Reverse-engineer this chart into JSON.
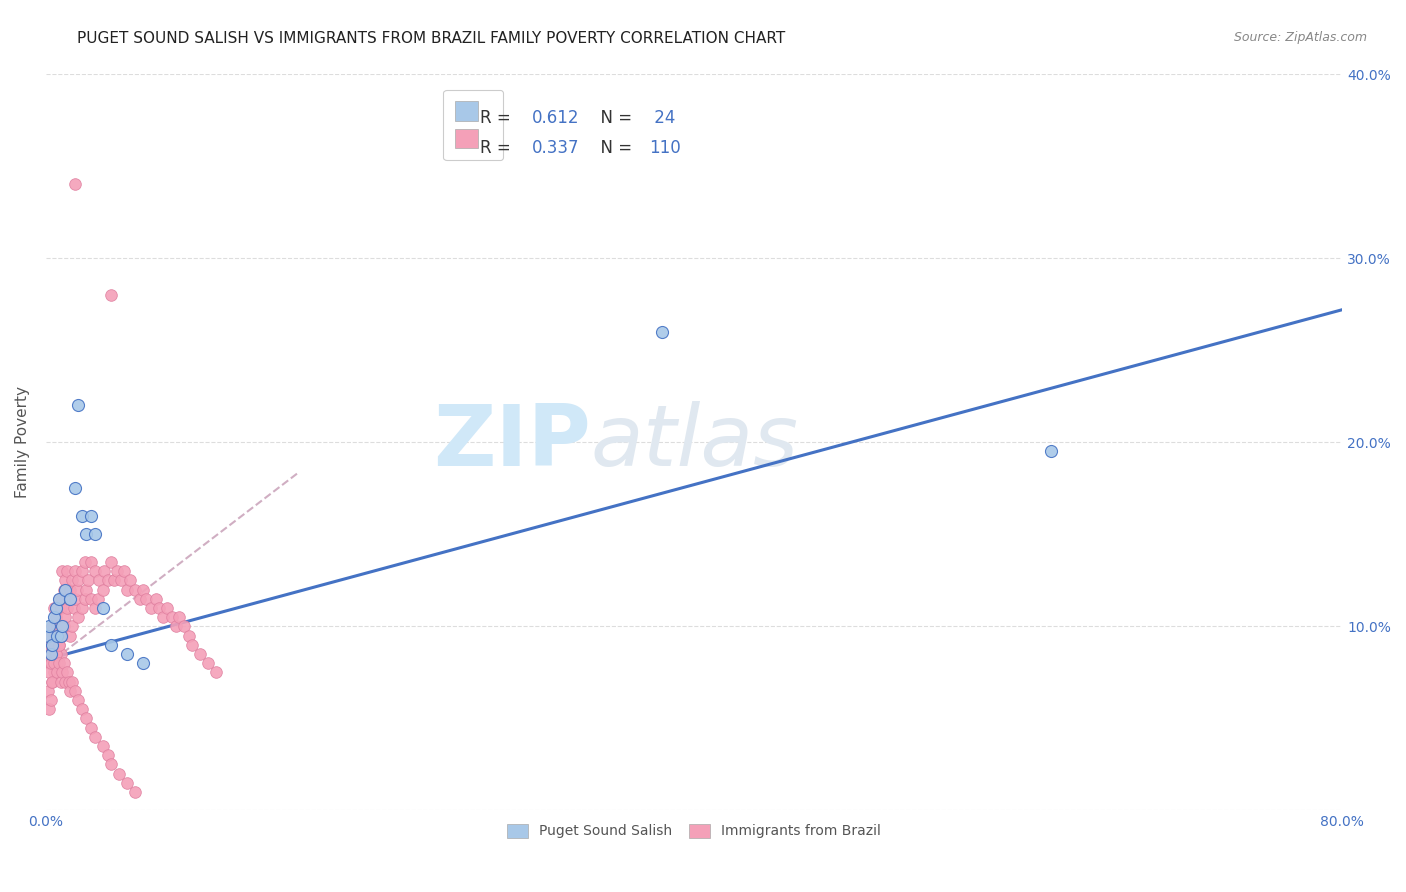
{
  "title": "PUGET SOUND SALISH VS IMMIGRANTS FROM BRAZIL FAMILY POVERTY CORRELATION CHART",
  "source_text": "Source: ZipAtlas.com",
  "ylabel": "Family Poverty",
  "xlim": [
    0,
    0.8
  ],
  "ylim": [
    0,
    0.4
  ],
  "legend_label1": "Puget Sound Salish",
  "legend_label2": "Immigrants from Brazil",
  "r1": 0.612,
  "n1": 24,
  "r2": 0.337,
  "n2": 110,
  "color1": "#a8c8e8",
  "color2": "#f4a0b8",
  "line_color1": "#4472c4",
  "line_color2": "#c8a0b8",
  "watermark_color": "#d0e8f8",
  "background_color": "#ffffff",
  "grid_color": "#dddddd",
  "tick_label_color": "#4472c4",
  "title_color": "#222222",
  "source_color": "#888888",
  "blue_line_x0": 0.0,
  "blue_line_y0": 0.082,
  "blue_line_x1": 0.8,
  "blue_line_y1": 0.272,
  "pink_line_x0": 0.005,
  "pink_line_y0": 0.082,
  "pink_line_x1": 0.155,
  "pink_line_y1": 0.183,
  "scatter1_x": [
    0.001,
    0.002,
    0.003,
    0.004,
    0.005,
    0.006,
    0.007,
    0.008,
    0.009,
    0.01,
    0.012,
    0.015,
    0.018,
    0.02,
    0.022,
    0.025,
    0.028,
    0.03,
    0.035,
    0.04,
    0.05,
    0.06,
    0.38,
    0.62
  ],
  "scatter1_y": [
    0.095,
    0.1,
    0.085,
    0.09,
    0.105,
    0.11,
    0.095,
    0.115,
    0.095,
    0.1,
    0.12,
    0.115,
    0.175,
    0.22,
    0.16,
    0.15,
    0.16,
    0.15,
    0.11,
    0.09,
    0.085,
    0.08,
    0.26,
    0.195
  ],
  "scatter2_x": [
    0.018,
    0.04,
    0.001,
    0.002,
    0.002,
    0.003,
    0.003,
    0.004,
    0.004,
    0.005,
    0.005,
    0.005,
    0.006,
    0.006,
    0.007,
    0.007,
    0.008,
    0.008,
    0.009,
    0.009,
    0.01,
    0.01,
    0.01,
    0.011,
    0.011,
    0.012,
    0.012,
    0.013,
    0.013,
    0.014,
    0.015,
    0.015,
    0.016,
    0.016,
    0.017,
    0.018,
    0.018,
    0.019,
    0.02,
    0.02,
    0.022,
    0.022,
    0.024,
    0.024,
    0.025,
    0.026,
    0.028,
    0.028,
    0.03,
    0.03,
    0.032,
    0.033,
    0.035,
    0.036,
    0.038,
    0.04,
    0.042,
    0.044,
    0.046,
    0.048,
    0.05,
    0.052,
    0.055,
    0.058,
    0.06,
    0.062,
    0.065,
    0.068,
    0.07,
    0.072,
    0.075,
    0.078,
    0.08,
    0.082,
    0.085,
    0.088,
    0.09,
    0.095,
    0.1,
    0.105,
    0.001,
    0.002,
    0.003,
    0.003,
    0.004,
    0.005,
    0.006,
    0.007,
    0.008,
    0.008,
    0.009,
    0.01,
    0.011,
    0.012,
    0.013,
    0.014,
    0.015,
    0.016,
    0.018,
    0.02,
    0.022,
    0.025,
    0.028,
    0.03,
    0.035,
    0.038,
    0.04,
    0.045,
    0.05,
    0.055
  ],
  "scatter2_y": [
    0.34,
    0.28,
    0.065,
    0.055,
    0.08,
    0.06,
    0.095,
    0.07,
    0.1,
    0.075,
    0.09,
    0.11,
    0.085,
    0.105,
    0.08,
    0.1,
    0.09,
    0.115,
    0.085,
    0.11,
    0.095,
    0.115,
    0.13,
    0.1,
    0.12,
    0.105,
    0.125,
    0.11,
    0.13,
    0.115,
    0.095,
    0.12,
    0.1,
    0.125,
    0.11,
    0.115,
    0.13,
    0.12,
    0.105,
    0.125,
    0.11,
    0.13,
    0.115,
    0.135,
    0.12,
    0.125,
    0.115,
    0.135,
    0.11,
    0.13,
    0.115,
    0.125,
    0.12,
    0.13,
    0.125,
    0.135,
    0.125,
    0.13,
    0.125,
    0.13,
    0.12,
    0.125,
    0.12,
    0.115,
    0.12,
    0.115,
    0.11,
    0.115,
    0.11,
    0.105,
    0.11,
    0.105,
    0.1,
    0.105,
    0.1,
    0.095,
    0.09,
    0.085,
    0.08,
    0.075,
    0.085,
    0.075,
    0.08,
    0.09,
    0.07,
    0.08,
    0.085,
    0.075,
    0.08,
    0.09,
    0.07,
    0.075,
    0.08,
    0.07,
    0.075,
    0.07,
    0.065,
    0.07,
    0.065,
    0.06,
    0.055,
    0.05,
    0.045,
    0.04,
    0.035,
    0.03,
    0.025,
    0.02,
    0.015,
    0.01
  ]
}
